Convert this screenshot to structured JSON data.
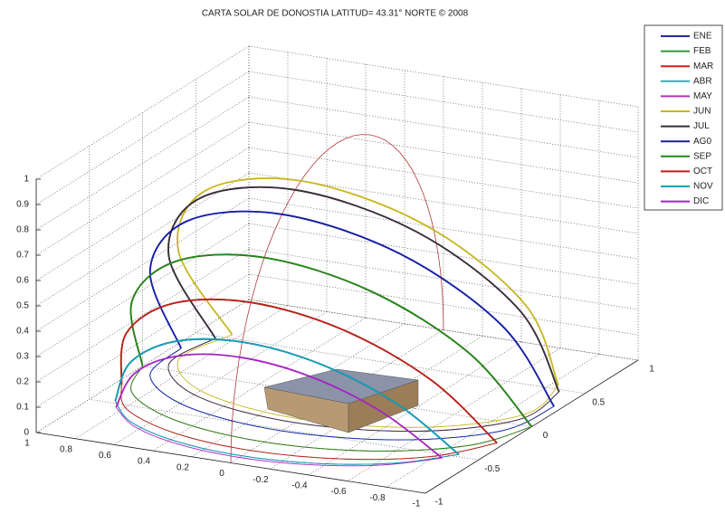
{
  "chart_data": {
    "type": "line3d",
    "title": "CARTA SOLAR DE DONOSTIA LATITUD= 43.31° NORTE © 2008",
    "xlim": [
      -1,
      1
    ],
    "ylim": [
      -1,
      1
    ],
    "zlim": [
      0,
      1
    ],
    "xticks": [
      1,
      0.8,
      0.6,
      0.4,
      0.2,
      0,
      -0.2,
      -0.4,
      -0.6,
      -0.8,
      -1
    ],
    "yticks": [
      -1,
      -0.5,
      0,
      0.5,
      1
    ],
    "zticks": [
      0,
      0.1,
      0.2,
      0.3,
      0.4,
      0.5,
      0.6,
      0.7,
      0.8,
      0.9,
      1
    ],
    "grid": true,
    "legend": "right",
    "series": [
      {
        "name": "ENE",
        "color": "#1c2c9c",
        "x": [
          0.883,
          0.683,
          0.372,
          0,
          -0.372,
          -0.683,
          -0.883
        ],
        "y": [
          -0.471,
          -0.692,
          -0.841,
          -0.894,
          -0.841,
          -0.692,
          -0.471
        ],
        "z": [
          0,
          0.235,
          0.393,
          0.449,
          0.393,
          0.235,
          0
        ]
      },
      {
        "name": "FEB",
        "color": "#2f9a3c",
        "x": [
          0.965,
          0.785,
          0.438,
          0,
          -0.438,
          -0.785,
          -0.965
        ],
        "y": [
          -0.262,
          -0.545,
          -0.742,
          -0.813,
          -0.742,
          -0.545,
          -0.262
        ],
        "z": [
          0,
          0.299,
          0.509,
          0.584,
          0.509,
          0.299,
          0
        ]
      },
      {
        "name": "MAR",
        "color": "#d21f1f",
        "x": [
          1,
          0.866,
          0.5,
          0,
          -0.5,
          -0.866,
          -1
        ],
        "y": [
          0,
          -0.343,
          -0.594,
          -0.686,
          -0.594,
          -0.343,
          0
        ],
        "z": [
          0,
          0.364,
          0.63,
          0.728,
          0.63,
          0.364,
          0
        ]
      },
      {
        "name": "ABR",
        "color": "#22b4b4",
        "x": [
          0.958,
          0.905,
          0.546,
          0,
          -0.546,
          -0.905,
          -0.958
        ],
        "y": [
          0.286,
          -0.103,
          -0.406,
          -0.52,
          -0.406,
          -0.103,
          0.286
        ],
        "z": [
          0,
          0.413,
          0.734,
          0.855,
          0.734,
          0.413,
          0
        ]
      },
      {
        "name": "MAY",
        "color": "#b531c4",
        "x": [
          0.883,
          0.901,
          0.562,
          0,
          -0.562,
          -0.901,
          -0.883
        ],
        "y": [
          0.471,
          0.065,
          -0.268,
          -0.396,
          -0.268,
          0.065,
          0.471
        ],
        "z": [
          0,
          0.431,
          0.784,
          0.919,
          0.784,
          0.431,
          0
        ]
      },
      {
        "name": "JUN",
        "color": "#c8b51e",
        "x": [
          0.838,
          0.891,
          0.565,
          0,
          -0.565,
          -0.891,
          -0.838
        ],
        "y": [
          0.546,
          0.138,
          -0.207,
          -0.341,
          -0.207,
          0.138,
          0.546
        ],
        "z": [
          0,
          0.432,
          0.798,
          0.94,
          0.798,
          0.432,
          0
        ]
      },
      {
        "name": "JUL",
        "color": "#333333",
        "x": [
          0.883,
          0.901,
          0.562,
          0,
          -0.562,
          -0.901,
          -0.883
        ],
        "y": [
          0.471,
          0.065,
          -0.268,
          -0.396,
          -0.268,
          0.065,
          0.471
        ],
        "z": [
          0,
          0.431,
          0.784,
          0.919,
          0.784,
          0.431,
          0
        ]
      },
      {
        "name": "AG0",
        "color": "#1a1aa6",
        "x": [
          0.958,
          0.905,
          0.546,
          0,
          -0.546,
          -0.905,
          -0.958
        ],
        "y": [
          0.286,
          -0.103,
          -0.406,
          -0.52,
          -0.406,
          -0.103,
          0.286
        ],
        "z": [
          0,
          0.413,
          0.734,
          0.855,
          0.734,
          0.413,
          0
        ]
      },
      {
        "name": "SEP",
        "color": "#1a8a1a",
        "x": [
          1,
          0.866,
          0.5,
          0,
          -0.5,
          -0.866,
          -1
        ],
        "y": [
          0,
          -0.343,
          -0.594,
          -0.686,
          -0.594,
          -0.343,
          0
        ],
        "z": [
          0,
          0.364,
          0.63,
          0.728,
          0.63,
          0.364,
          0
        ]
      },
      {
        "name": "OCT",
        "color": "#c41c1c",
        "x": [
          0.965,
          0.785,
          0.438,
          0,
          -0.438,
          -0.785,
          -0.965
        ],
        "y": [
          -0.262,
          -0.545,
          -0.742,
          -0.813,
          -0.742,
          -0.545,
          -0.262
        ],
        "z": [
          0,
          0.299,
          0.509,
          0.584,
          0.509,
          0.299,
          0
        ]
      },
      {
        "name": "NOV",
        "color": "#12a2b4",
        "x": [
          0.883,
          0.683,
          0.372,
          0,
          -0.372,
          -0.683,
          -0.883
        ],
        "y": [
          -0.471,
          -0.692,
          -0.841,
          -0.894,
          -0.841,
          -0.692,
          -0.471
        ],
        "z": [
          0,
          0.235,
          0.393,
          0.449,
          0.393,
          0.235,
          0
        ]
      },
      {
        "name": "DIC",
        "color": "#a622c2",
        "x": [
          0.838,
          0.636,
          0.344,
          0,
          -0.344,
          -0.636,
          -0.838
        ],
        "y": [
          -0.546,
          -0.743,
          -0.873,
          -0.919,
          -0.873,
          -0.743,
          -0.546
        ],
        "z": [
          0,
          0.209,
          0.347,
          0.396,
          0.347,
          0.209,
          0
        ]
      }
    ]
  }
}
